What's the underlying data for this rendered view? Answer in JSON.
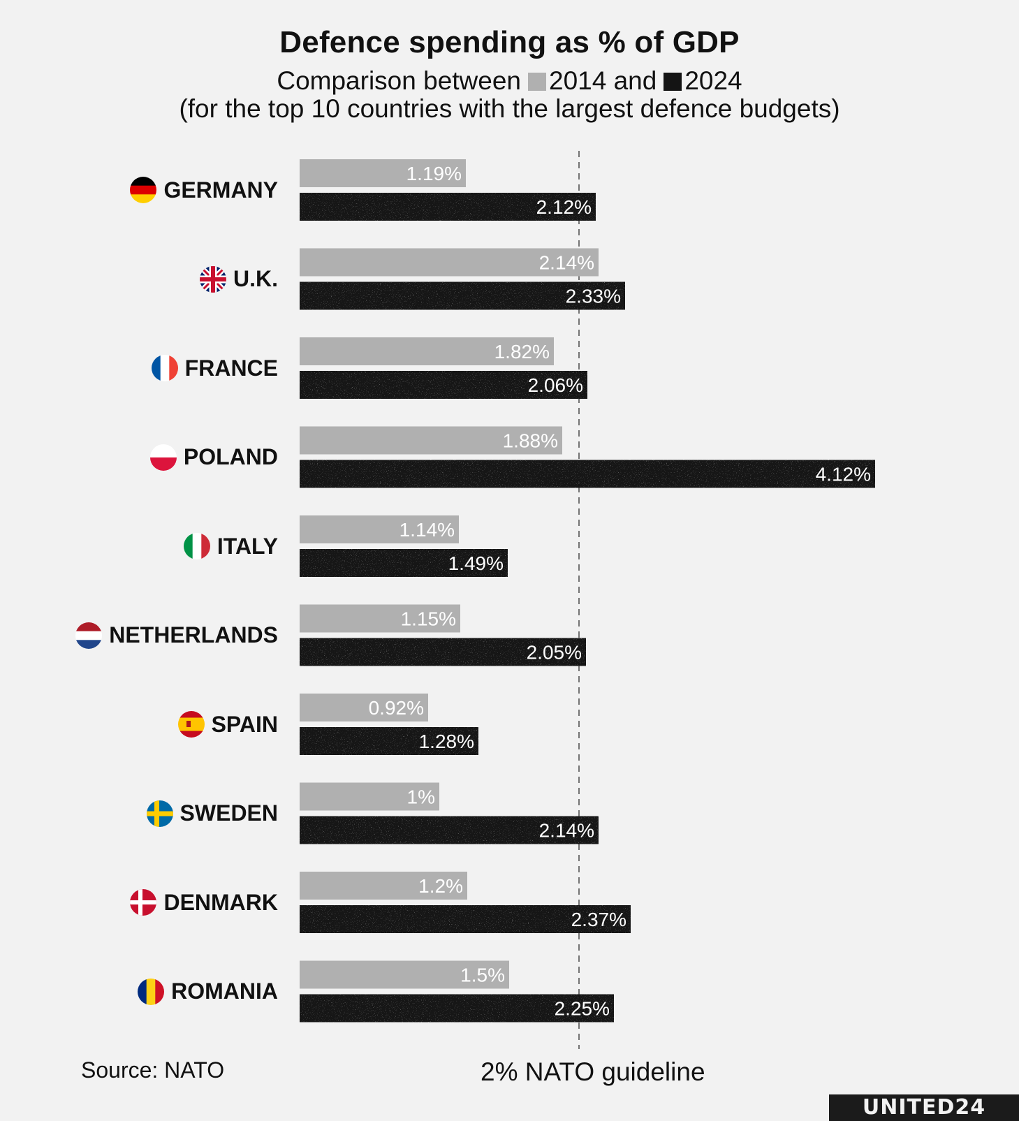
{
  "chart_data": {
    "type": "bar",
    "orientation": "horizontal",
    "title": "Defence spending as % of GDP",
    "subtitle_prefix": "Comparison between",
    "subtitle_joiner": "and",
    "subtitle_line2": "(for the top 10 countries with the largest defence budgets)",
    "categories": [
      "GERMANY",
      "U.K.",
      "FRANCE",
      "POLAND",
      "ITALY",
      "NETHERLANDS",
      "SPAIN",
      "SWEDEN",
      "DENMARK",
      "ROMANIA"
    ],
    "series": [
      {
        "name": "2014",
        "color": "#b0b0b0",
        "values": [
          1.19,
          2.14,
          1.82,
          1.88,
          1.14,
          1.15,
          0.92,
          1.0,
          1.2,
          1.5
        ],
        "labels": [
          "1.19%",
          "2.14%",
          "1.82%",
          "1.88%",
          "1.14%",
          "1.15%",
          "0.92%",
          "1%",
          "1.2%",
          "1.5%"
        ]
      },
      {
        "name": "2024",
        "color": "#141414",
        "values": [
          2.12,
          2.33,
          2.06,
          4.12,
          1.49,
          2.05,
          1.28,
          2.14,
          2.37,
          2.25
        ],
        "labels": [
          "2.12%",
          "2.33%",
          "2.06%",
          "4.12%",
          "1.49%",
          "2.05%",
          "1.28%",
          "2.14%",
          "2.37%",
          "2.25%"
        ]
      }
    ],
    "reference_line": {
      "value": 2,
      "label": "2% NATO guideline",
      "style": "dashed"
    },
    "xlim": [
      0,
      4.12
    ],
    "grid": false,
    "legend": "in subtitle",
    "source": "Source: NATO"
  },
  "flags": [
    {
      "icon": "germany-flag-icon",
      "colors": [
        "#000000",
        "#dd0000",
        "#ffce00"
      ]
    },
    {
      "icon": "uk-flag-icon",
      "colors": [
        "#012169",
        "#ffffff",
        "#c8102e"
      ]
    },
    {
      "icon": "france-flag-icon",
      "colors": [
        "#0055a4",
        "#ffffff",
        "#ef4135"
      ]
    },
    {
      "icon": "poland-flag-icon",
      "colors": [
        "#ffffff",
        "#dc143c"
      ]
    },
    {
      "icon": "italy-flag-icon",
      "colors": [
        "#009246",
        "#ffffff",
        "#ce2b37"
      ]
    },
    {
      "icon": "netherlands-flag-icon",
      "colors": [
        "#ae1c28",
        "#ffffff",
        "#21468b"
      ]
    },
    {
      "icon": "spain-flag-icon",
      "colors": [
        "#c60b1e",
        "#ffc400",
        "#c60b1e"
      ]
    },
    {
      "icon": "sweden-flag-icon",
      "colors": [
        "#006aa7",
        "#fecc00"
      ]
    },
    {
      "icon": "denmark-flag-icon",
      "colors": [
        "#c8102e",
        "#ffffff"
      ]
    },
    {
      "icon": "romania-flag-icon",
      "colors": [
        "#002b7f",
        "#fcd116",
        "#ce1126"
      ]
    }
  ],
  "brand": {
    "logo_text": "UNITED24"
  }
}
